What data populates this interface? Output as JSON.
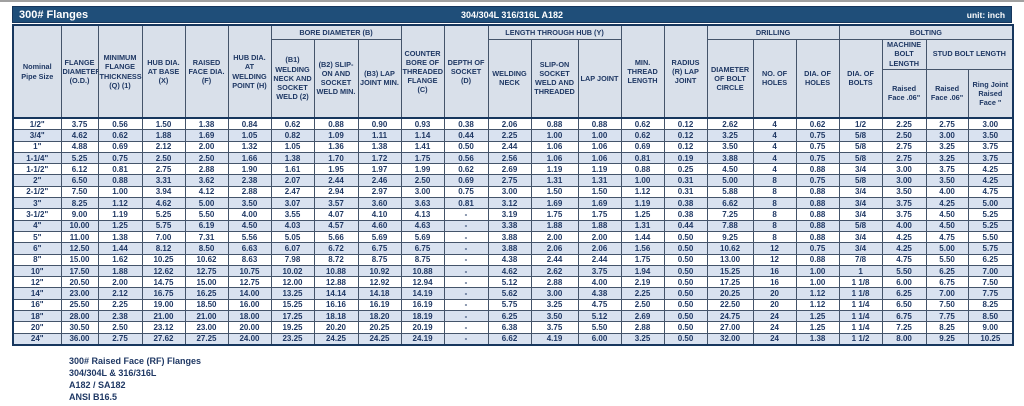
{
  "title_bar": {
    "title": "300# Flanges",
    "material": "304/304L 316/316L A182",
    "unit": "unit: inch"
  },
  "accent_colors": {
    "title_bar_bg": "#1F4E79",
    "header_bg": "#D9E0EA",
    "stripe_bg": "#D9E2F0",
    "text_navy": "#1F3864"
  },
  "table": {
    "groups": {
      "bore": "BORE DIAMETER (B)",
      "length_hub": "LENGTH THROUGH HUB (Y)",
      "drilling": "DRILLING",
      "bolting": "BOLTING"
    },
    "columns": {
      "nominal": "Nominal Pipe Size",
      "od": "FLANGE DIAMETER (O.D.)",
      "thickness": "MINIMUM FLANGE THICKNESS (Q) (1)",
      "hub_base": "HUB DIA. AT BASE (X)",
      "rf_dia": "RAISED FACE DIA. (F)",
      "hub_weld": "HUB DIA. AT WELDING POINT (H)",
      "b1": "(B1) WELDING NECK AND SOCKET WELD (2)",
      "b2": "(B2) SLIP-ON AND SOCKET WELD MIN.",
      "b3": "(B3) LAP JOINT MIN.",
      "counter_bore": "COUNTER BORE OF THREADED FLANGE (C)",
      "depth_socket": "DEPTH OF SOCKET (D)",
      "welding_neck": "WELDING NECK",
      "slip_on": "SLIP-ON SOCKET WELD AND THREADED",
      "lap_joint": "LAP JOINT",
      "min_thread": "MIN. THREAD LENGTH",
      "radius": "RADIUS (R) LAP JOINT",
      "bolt_circle": "DIAMETER OF BOLT CIRCLE",
      "no_holes": "NO. OF HOLES",
      "dia_holes": "DIA. OF HOLES",
      "dia_bolts": "DIA. OF BOLTS",
      "machine_bolt": "MACHINE BOLT LENGTH",
      "stud_bolt": "STUD BOLT LENGTH",
      "machine_sub": "Raised Face .06\"",
      "stud_sub1": "Raised Face .06\"",
      "stud_sub2": "Ring Joint Raised Face \""
    },
    "rows": [
      [
        "1/2\"",
        "3.75",
        "0.56",
        "1.50",
        "1.38",
        "0.84",
        "0.62",
        "0.88",
        "0.90",
        "0.93",
        "0.38",
        "2.06",
        "0.88",
        "0.88",
        "0.62",
        "0.12",
        "2.62",
        "4",
        "0.62",
        "1/2",
        "2.25",
        "2.75",
        "3.00"
      ],
      [
        "3/4\"",
        "4.62",
        "0.62",
        "1.88",
        "1.69",
        "1.05",
        "0.82",
        "1.09",
        "1.11",
        "1.14",
        "0.44",
        "2.25",
        "1.00",
        "1.00",
        "0.62",
        "0.12",
        "3.25",
        "4",
        "0.75",
        "5/8",
        "2.50",
        "3.00",
        "3.50"
      ],
      [
        "1\"",
        "4.88",
        "0.69",
        "2.12",
        "2.00",
        "1.32",
        "1.05",
        "1.36",
        "1.38",
        "1.41",
        "0.50",
        "2.44",
        "1.06",
        "1.06",
        "0.69",
        "0.12",
        "3.50",
        "4",
        "0.75",
        "5/8",
        "2.75",
        "3.25",
        "3.75"
      ],
      [
        "1-1/4\"",
        "5.25",
        "0.75",
        "2.50",
        "2.50",
        "1.66",
        "1.38",
        "1.70",
        "1.72",
        "1.75",
        "0.56",
        "2.56",
        "1.06",
        "1.06",
        "0.81",
        "0.19",
        "3.88",
        "4",
        "0.75",
        "5/8",
        "2.75",
        "3.25",
        "3.75"
      ],
      [
        "1-1/2\"",
        "6.12",
        "0.81",
        "2.75",
        "2.88",
        "1.90",
        "1.61",
        "1.95",
        "1.97",
        "1.99",
        "0.62",
        "2.69",
        "1.19",
        "1.19",
        "0.88",
        "0.25",
        "4.50",
        "4",
        "0.88",
        "3/4",
        "3.00",
        "3.75",
        "4.25"
      ],
      [
        "2\"",
        "6.50",
        "0.88",
        "3.31",
        "3.62",
        "2.38",
        "2.07",
        "2.44",
        "2.46",
        "2.50",
        "0.69",
        "2.75",
        "1.31",
        "1.31",
        "1.00",
        "0.31",
        "5.00",
        "8",
        "0.75",
        "5/8",
        "3.00",
        "3.50",
        "4.25"
      ],
      [
        "2-1/2\"",
        "7.50",
        "1.00",
        "3.94",
        "4.12",
        "2.88",
        "2.47",
        "2.94",
        "2.97",
        "3.00",
        "0.75",
        "3.00",
        "1.50",
        "1.50",
        "1.12",
        "0.31",
        "5.88",
        "8",
        "0.88",
        "3/4",
        "3.50",
        "4.00",
        "4.75"
      ],
      [
        "3\"",
        "8.25",
        "1.12",
        "4.62",
        "5.00",
        "3.50",
        "3.07",
        "3.57",
        "3.60",
        "3.63",
        "0.81",
        "3.12",
        "1.69",
        "1.69",
        "1.19",
        "0.38",
        "6.62",
        "8",
        "0.88",
        "3/4",
        "3.75",
        "4.25",
        "5.00"
      ],
      [
        "3-1/2\"",
        "9.00",
        "1.19",
        "5.25",
        "5.50",
        "4.00",
        "3.55",
        "4.07",
        "4.10",
        "4.13",
        "-",
        "3.19",
        "1.75",
        "1.75",
        "1.25",
        "0.38",
        "7.25",
        "8",
        "0.88",
        "3/4",
        "3.75",
        "4.50",
        "5.25"
      ],
      [
        "4\"",
        "10.00",
        "1.25",
        "5.75",
        "6.19",
        "4.50",
        "4.03",
        "4.57",
        "4.60",
        "4.63",
        "-",
        "3.38",
        "1.88",
        "1.88",
        "1.31",
        "0.44",
        "7.88",
        "8",
        "0.88",
        "5/8",
        "4.00",
        "4.50",
        "5.25"
      ],
      [
        "5\"",
        "11.00",
        "1.38",
        "7.00",
        "7.31",
        "5.56",
        "5.05",
        "5.66",
        "5.69",
        "5.69",
        "-",
        "3.88",
        "2.00",
        "2.00",
        "1.44",
        "0.50",
        "9.25",
        "8",
        "0.88",
        "3/4",
        "4.25",
        "4.75",
        "5.50"
      ],
      [
        "6\"",
        "12.50",
        "1.44",
        "8.12",
        "8.50",
        "6.63",
        "6.07",
        "6.72",
        "6.75",
        "6.75",
        "-",
        "3.88",
        "2.06",
        "2.06",
        "1.56",
        "0.50",
        "10.62",
        "12",
        "0.75",
        "3/4",
        "4.25",
        "5.00",
        "5.75"
      ],
      [
        "8\"",
        "15.00",
        "1.62",
        "10.25",
        "10.62",
        "8.63",
        "7.98",
        "8.72",
        "8.75",
        "8.75",
        "-",
        "4.38",
        "2.44",
        "2.44",
        "1.75",
        "0.50",
        "13.00",
        "12",
        "0.88",
        "7/8",
        "4.75",
        "5.50",
        "6.25"
      ],
      [
        "10\"",
        "17.50",
        "1.88",
        "12.62",
        "12.75",
        "10.75",
        "10.02",
        "10.88",
        "10.92",
        "10.88",
        "-",
        "4.62",
        "2.62",
        "3.75",
        "1.94",
        "0.50",
        "15.25",
        "16",
        "1.00",
        "1",
        "5.50",
        "6.25",
        "7.00"
      ],
      [
        "12\"",
        "20.50",
        "2.00",
        "14.75",
        "15.00",
        "12.75",
        "12.00",
        "12.88",
        "12.92",
        "12.94",
        "-",
        "5.12",
        "2.88",
        "4.00",
        "2.19",
        "0.50",
        "17.25",
        "16",
        "1.00",
        "1 1/8",
        "6.00",
        "6.75",
        "7.50"
      ],
      [
        "14\"",
        "23.00",
        "2.12",
        "16.75",
        "16.25",
        "14.00",
        "13.25",
        "14.14",
        "14.18",
        "14.19",
        "-",
        "5.62",
        "3.00",
        "4.38",
        "2.25",
        "0.50",
        "20.25",
        "20",
        "1.12",
        "1 1/8",
        "6.25",
        "7.00",
        "7.75"
      ],
      [
        "16\"",
        "25.50",
        "2.25",
        "19.00",
        "18.50",
        "16.00",
        "15.25",
        "16.16",
        "16.19",
        "16.19",
        "-",
        "5.75",
        "3.25",
        "4.75",
        "2.50",
        "0.50",
        "22.50",
        "20",
        "1.12",
        "1 1/4",
        "6.50",
        "7.50",
        "8.25"
      ],
      [
        "18\"",
        "28.00",
        "2.38",
        "21.00",
        "21.00",
        "18.00",
        "17.25",
        "18.18",
        "18.20",
        "18.19",
        "-",
        "6.25",
        "3.50",
        "5.12",
        "2.69",
        "0.50",
        "24.75",
        "24",
        "1.25",
        "1 1/4",
        "6.75",
        "7.75",
        "8.50"
      ],
      [
        "20\"",
        "30.50",
        "2.50",
        "23.12",
        "23.00",
        "20.00",
        "19.25",
        "20.20",
        "20.25",
        "20.19",
        "-",
        "6.38",
        "3.75",
        "5.50",
        "2.88",
        "0.50",
        "27.00",
        "24",
        "1.25",
        "1 1/4",
        "7.25",
        "8.25",
        "9.00"
      ],
      [
        "24\"",
        "36.00",
        "2.75",
        "27.62",
        "27.25",
        "24.00",
        "23.25",
        "24.25",
        "24.25",
        "24.19",
        "-",
        "6.62",
        "4.19",
        "6.00",
        "3.25",
        "0.50",
        "32.00",
        "24",
        "1.38",
        "1 1/2",
        "8.00",
        "9.25",
        "10.25"
      ]
    ]
  },
  "footer": {
    "lines": [
      "300# Raised Face (RF) Flanges",
      "304/304L & 316/316L",
      "A182 / SA182",
      "ANSI B16.5"
    ]
  }
}
